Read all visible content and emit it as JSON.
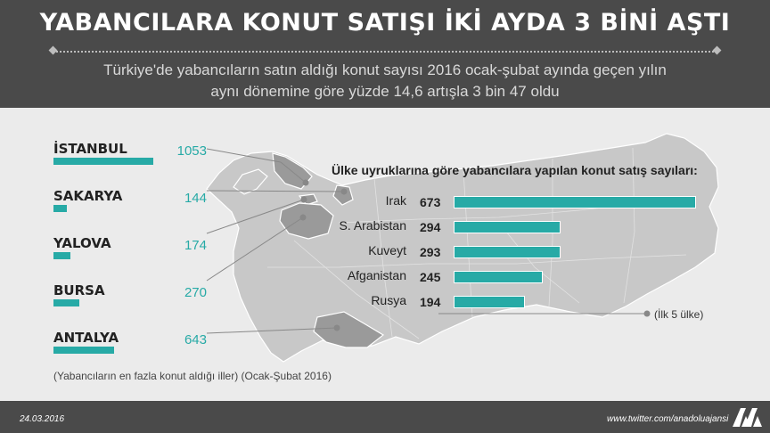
{
  "header": {
    "title": "YABANCILARA KONUT SATIŞI İKİ AYDA 3 BİNİ AŞTI",
    "subtitle_line1": "Türkiye'de yabancıların satın aldığı konut sayısı 2016 ocak-şubat ayında geçen yılın",
    "subtitle_line2": "aynı dönemine göre yüzde 14,6 artışla 3 bin 47 oldu"
  },
  "colors": {
    "header_bg": "#4a4a4a",
    "accent": "#27aaa6",
    "map_fill": "#c8c8c8",
    "map_highlight": "#9a9a9a",
    "page_bg": "#ebebeb"
  },
  "chart_data": [
    {
      "type": "bar",
      "orientation": "horizontal",
      "title": "",
      "categories": [
        "İSTANBUL",
        "SAKARYA",
        "YALOVA",
        "BURSA",
        "ANTALYA"
      ],
      "values": [
        1053,
        144,
        174,
        270,
        643
      ],
      "xlim": [
        0,
        1053
      ]
    },
    {
      "type": "bar",
      "orientation": "horizontal",
      "title": "Ülke uyruklarına göre yabancılara yapılan konut satış sayıları:",
      "categories": [
        "Irak",
        "S. Arabistan",
        "Kuveyt",
        "Afganistan",
        "Rusya"
      ],
      "values": [
        673,
        294,
        293,
        245,
        194
      ],
      "note": "(İlk 5 ülke)",
      "xlim": [
        0,
        673
      ]
    }
  ],
  "source_note": "(Yabancıların en fazla konut aldığı iller)  (Ocak-Şubat 2016)",
  "footer": {
    "date": "24.03.2016",
    "twitter": "www.twitter.com/anadoluajansi",
    "logo_icon": "aa-logo-icon"
  }
}
